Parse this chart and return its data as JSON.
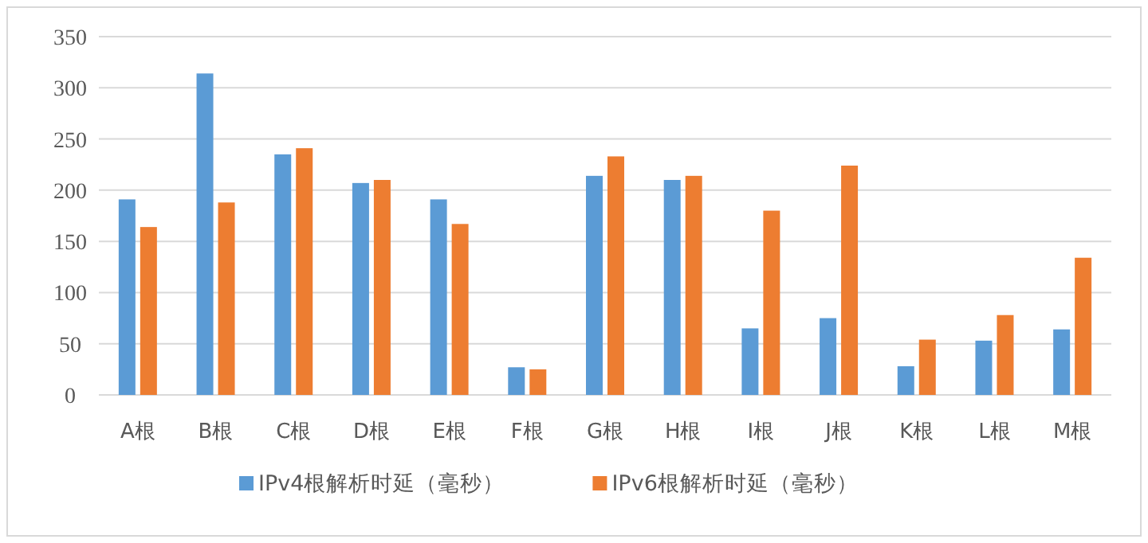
{
  "chart_data": {
    "type": "bar",
    "categories": [
      "A根",
      "B根",
      "C根",
      "D根",
      "E根",
      "F根",
      "G根",
      "H根",
      "I根",
      "J根",
      "K根",
      "L根",
      "M根"
    ],
    "series": [
      {
        "name": "IPv4根解析时延（毫秒）",
        "color": "#5b9bd5",
        "values": [
          191,
          314,
          235,
          207,
          191,
          27,
          214,
          210,
          65,
          75,
          28,
          53,
          64
        ]
      },
      {
        "name": "IPv6根解析时延（毫秒）",
        "color": "#ed7d31",
        "values": [
          164,
          188,
          241,
          210,
          167,
          25,
          233,
          214,
          180,
          224,
          54,
          78,
          134
        ]
      }
    ],
    "ylim": [
      0,
      350
    ],
    "yticks": [
      0,
      50,
      100,
      150,
      200,
      250,
      300,
      350
    ],
    "grid": "y",
    "legend": "bottom"
  }
}
